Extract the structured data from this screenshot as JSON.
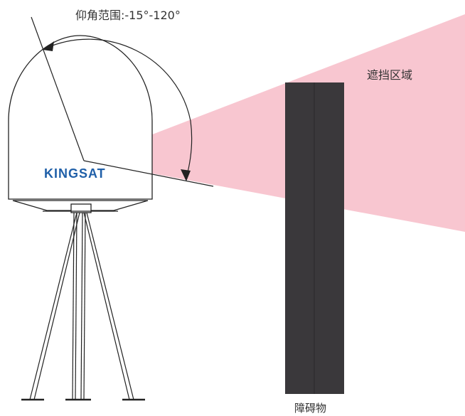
{
  "labels": {
    "elevation_range": "仰角范围:-15°-120°",
    "shadow_zone": "遮挡区域",
    "obstacle": "障碍物",
    "brand": "KINGSAT"
  },
  "colors": {
    "shadow_zone": "#f8c6d0",
    "obstacle": "#3a383b",
    "outline": "#222222",
    "brand": "#1f5fa8"
  },
  "icons": [
    "satellite-dome-icon",
    "tripod-icon",
    "elevation-arc-arrow-icon"
  ]
}
